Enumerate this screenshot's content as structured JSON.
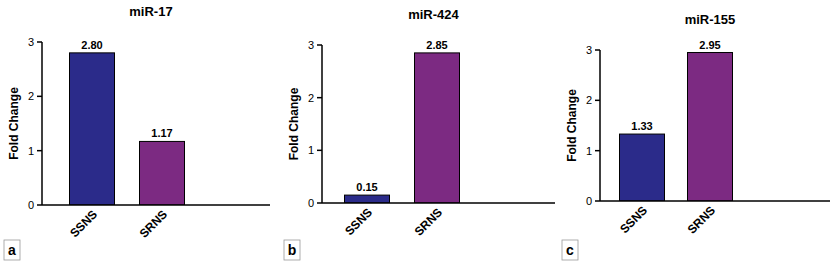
{
  "chart_data": [
    {
      "type": "bar",
      "title": "miR-17",
      "y_label": "Fold Change",
      "panel_label": "a",
      "categories": [
        "SSNS",
        "SRNS"
      ],
      "values": [
        2.8,
        1.17
      ],
      "value_labels": [
        "2.80",
        "1.17"
      ],
      "colors": [
        "#2b2b8a",
        "#7c2a82"
      ],
      "ylim": [
        0,
        3
      ],
      "yticks": [
        0,
        1,
        2,
        3
      ],
      "data_labels": true,
      "grid": false
    },
    {
      "type": "bar",
      "title": "miR-424",
      "y_label": "Fold Change",
      "panel_label": "b",
      "categories": [
        "SSNS",
        "SRNS"
      ],
      "values": [
        0.15,
        2.85
      ],
      "value_labels": [
        "0.15",
        "2.85"
      ],
      "colors": [
        "#2b2b8a",
        "#7c2a82"
      ],
      "ylim": [
        0,
        3
      ],
      "yticks": [
        0,
        1,
        2,
        3
      ],
      "data_labels": true,
      "grid": false
    },
    {
      "type": "bar",
      "title": "miR-155",
      "y_label": "Fold Change",
      "panel_label": "c",
      "categories": [
        "SSNS",
        "SRNS"
      ],
      "values": [
        1.33,
        2.95
      ],
      "value_labels": [
        "1.33",
        "2.95"
      ],
      "colors": [
        "#2b2b8a",
        "#7c2a82"
      ],
      "ylim": [
        0,
        3
      ],
      "yticks": [
        0,
        1,
        2,
        3
      ],
      "data_labels": true,
      "grid": false
    }
  ]
}
